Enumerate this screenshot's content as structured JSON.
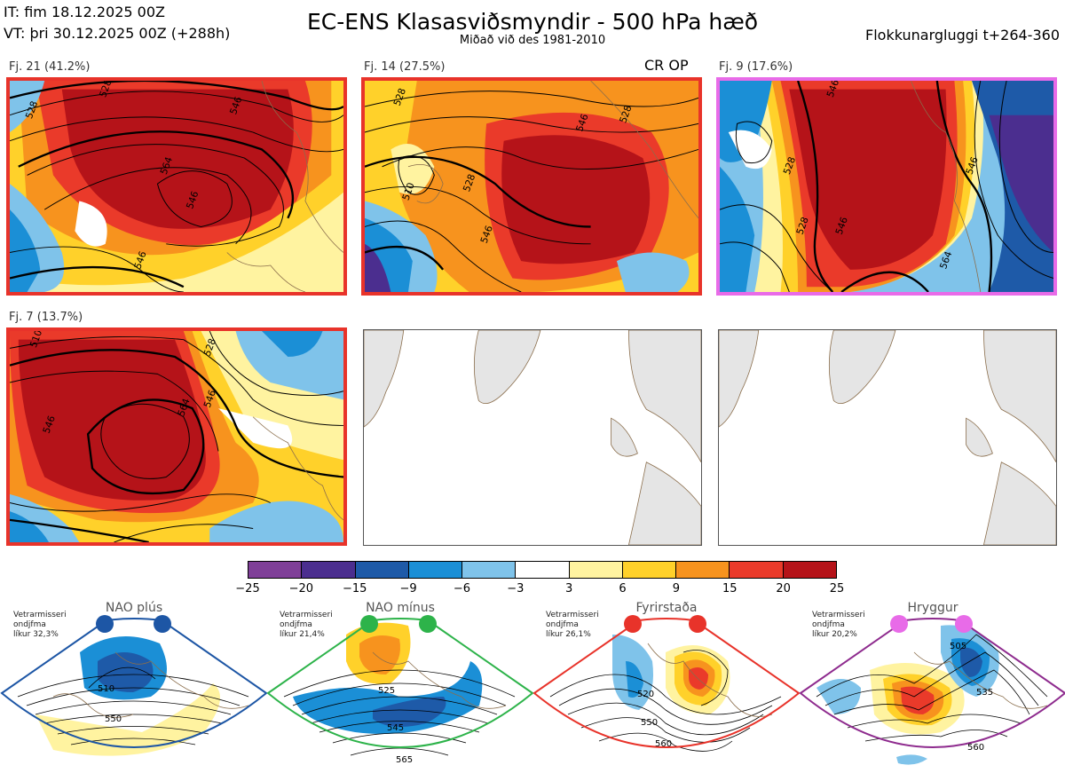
{
  "header": {
    "it": "IT: fim 18.12.2025 00Z",
    "vt": "VT: þri 30.12.2025 00Z  (+288h)",
    "title": "EC-ENS Klasasviðsmyndir - 500 hPa hæð",
    "subtitle": "Miðað við des 1981-2010",
    "window": "Flokkunargluggi t+264-360"
  },
  "clusters": [
    {
      "label": "Fj. 21 (41.2%)",
      "border": "#e8332a",
      "contours": [
        "528",
        "528",
        "546",
        "564",
        "546",
        "546"
      ]
    },
    {
      "label": "Fj. 14 (27.5%)",
      "border": "#e8332a",
      "tag": "CR OP",
      "contours": [
        "528",
        "546",
        "510",
        "528",
        "546",
        "528"
      ]
    },
    {
      "label": "Fj. 9 (17.6%)",
      "border": "#e86be8",
      "contours": [
        "546",
        "528",
        "528",
        "546",
        "546",
        "564"
      ]
    },
    {
      "label": "Fj. 7 (13.7%)",
      "border": "#e8332a",
      "contours": [
        "510",
        "528",
        "546",
        "546",
        "564"
      ]
    }
  ],
  "legend": {
    "colors": [
      "#7f3f98",
      "#4b2e8f",
      "#1e5aa8",
      "#1b8fd6",
      "#7fc3ea",
      "#ffffff",
      "#fff3a0",
      "#ffd12a",
      "#f7931e",
      "#ea3a2a",
      "#b51319"
    ],
    "ticks": [
      "−25",
      "−20",
      "−15",
      "−9",
      "−6",
      "−3",
      "3",
      "6",
      "9",
      "15",
      "20",
      "25"
    ]
  },
  "regimes": [
    {
      "name": "NAO plús",
      "desc": [
        "Vetrarmisseri",
        "ondjfma",
        "líkur 32,3%"
      ],
      "color": "#1d56a5",
      "labels": [
        "510",
        "550"
      ]
    },
    {
      "name": "NAO mínus",
      "desc": [
        "Vetrarmisseri",
        "ondjfma",
        "líkur 21,4%"
      ],
      "color": "#2db34a",
      "labels": [
        "525",
        "545",
        "565"
      ]
    },
    {
      "name": "Fyrirstaða",
      "desc": [
        "Vetrarmisseri",
        "ondjfma",
        "líkur 26,1%"
      ],
      "color": "#e8332a",
      "labels": [
        "520",
        "550",
        "560"
      ]
    },
    {
      "name": "Hryggur",
      "desc": [
        "Vetrarmisseri",
        "ondjfma",
        "líkur 20,2%"
      ],
      "color": "#8e2b8e",
      "labels": [
        "505",
        "535",
        "560"
      ]
    }
  ]
}
